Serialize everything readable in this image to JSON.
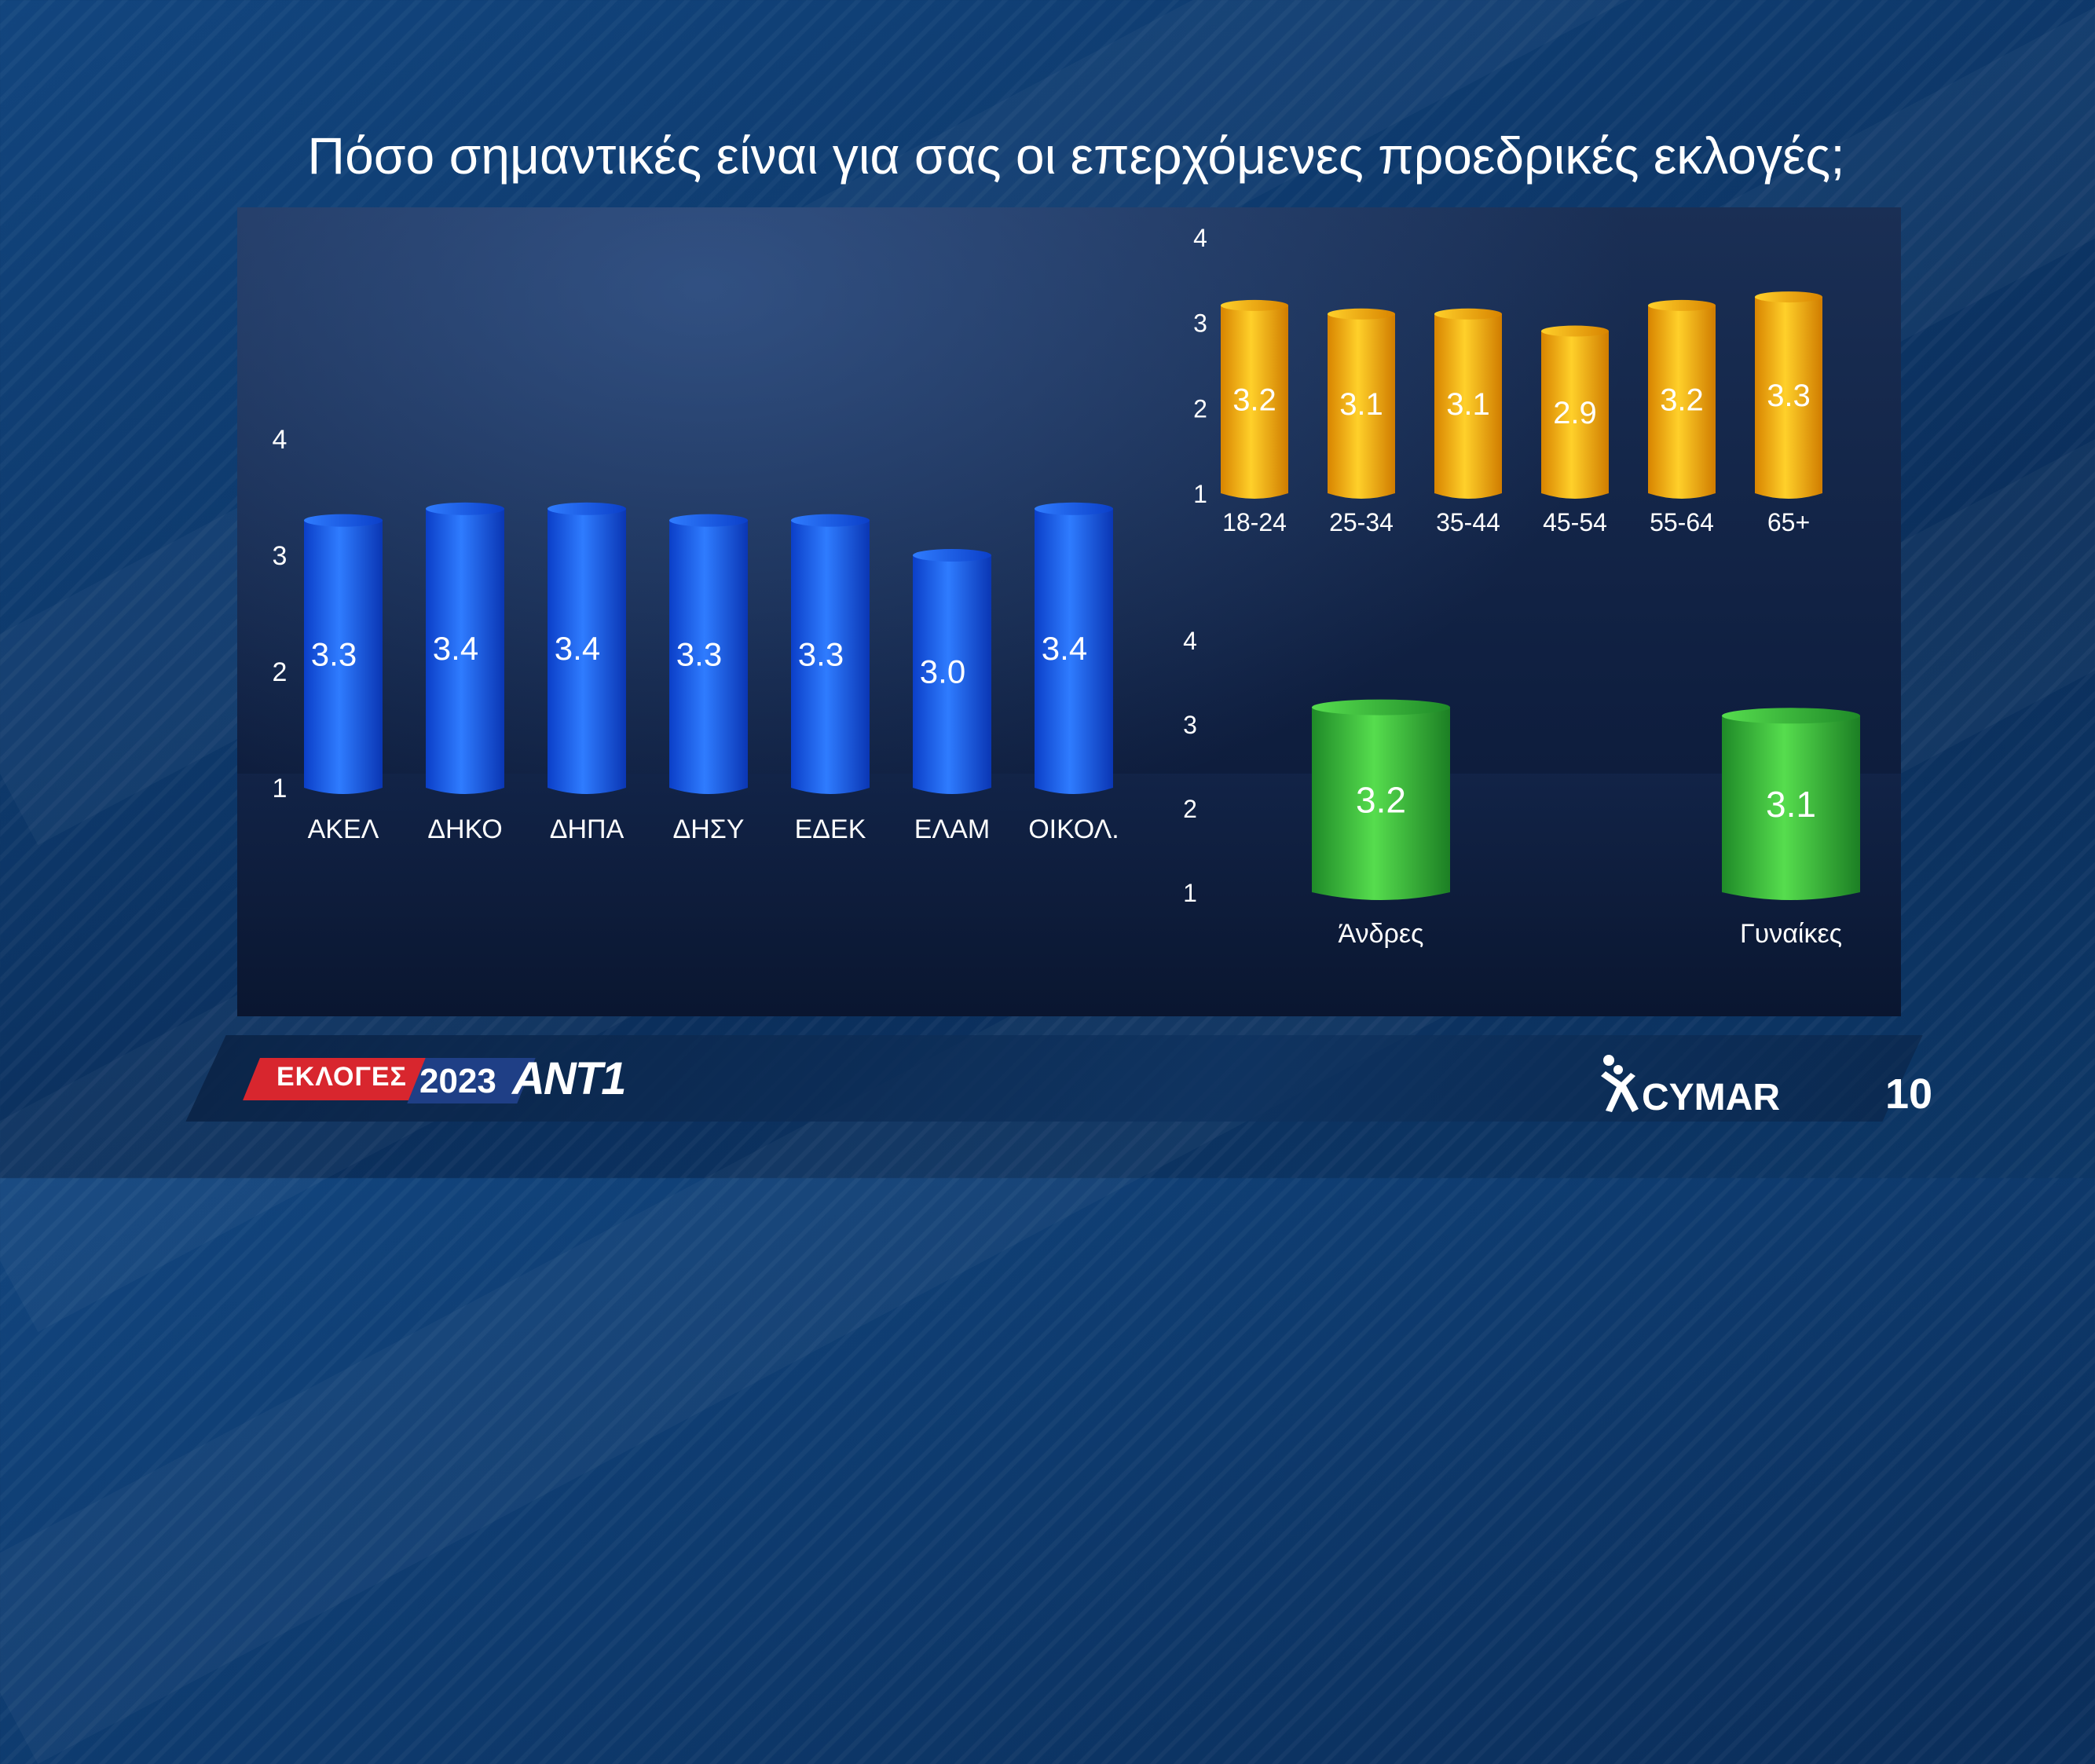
{
  "title": "Πόσο σημαντικές είναι για σας οι επερχόμενες προεδρικές εκλογές;",
  "colors": {
    "blue": "#1f5fe8",
    "orange": "#f6a40c",
    "green": "#2fa83a"
  },
  "chart_data": [
    {
      "type": "bar",
      "categories": [
        "ΑΚΕΛ",
        "ΔΗΚΟ",
        "ΔΗΠΑ",
        "ΔΗΣΥ",
        "ΕΔΕΚ",
        "ΕΛΑΜ",
        "ΟΙΚΟΛ."
      ],
      "values": [
        3.3,
        3.4,
        3.4,
        3.3,
        3.3,
        3.0,
        3.4
      ],
      "value_labels": [
        "3.3",
        "3.4",
        "3.4",
        "3.3",
        "3.3",
        "3.0",
        "3.4"
      ],
      "yticks": [
        "1",
        "2",
        "3",
        "4"
      ],
      "ylim": [
        1,
        4
      ],
      "color": "blue"
    },
    {
      "type": "bar",
      "categories": [
        "18-24",
        "25-34",
        "35-44",
        "45-54",
        "55-64",
        "65+"
      ],
      "values": [
        3.2,
        3.1,
        3.1,
        2.9,
        3.2,
        3.3
      ],
      "value_labels": [
        "3.2",
        "3.1",
        "3.1",
        "2.9",
        "3.2",
        "3.3"
      ],
      "yticks": [
        "1",
        "2",
        "3",
        "4"
      ],
      "ylim": [
        1,
        4
      ],
      "color": "orange"
    },
    {
      "type": "bar",
      "categories": [
        "Άνδρες",
        "Γυναίκες"
      ],
      "values": [
        3.2,
        3.1
      ],
      "value_labels": [
        "3.2",
        "3.1"
      ],
      "yticks": [
        "1",
        "2",
        "3",
        "4"
      ],
      "ylim": [
        1,
        4
      ],
      "color": "green"
    }
  ],
  "footer": {
    "ekloges": "ΕΚΛΟΓΕΣ",
    "year": "2023",
    "channel": "ANT1",
    "pollster": "CYMAR",
    "page_number": "10"
  }
}
